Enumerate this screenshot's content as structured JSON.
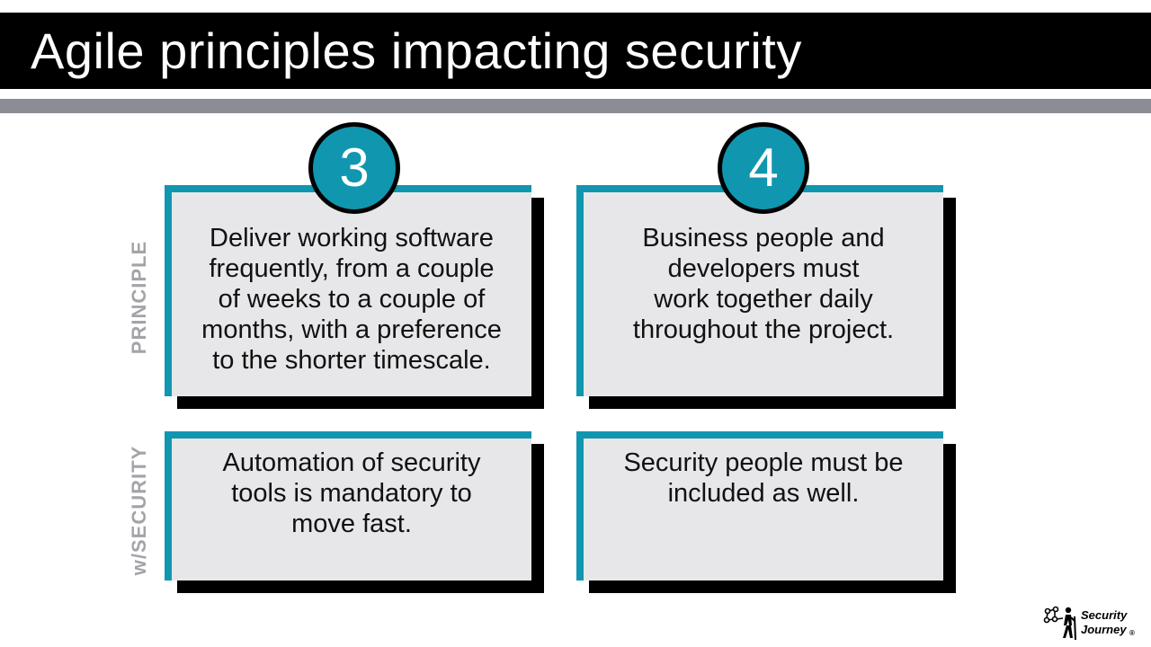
{
  "slide": {
    "title": "Agile principles impacting security"
  },
  "row_labels": {
    "principle": "PRINCIPLE",
    "security": "w/SECURITY"
  },
  "principles": [
    {
      "number": "3",
      "principle": "Deliver working software\nfrequently, from a couple\nof weeks to a couple of\nmonths, with a preference\nto the shorter timescale.",
      "with_security": "Automation of security\ntools is mandatory to\nmove fast."
    },
    {
      "number": "4",
      "principle": "Business people and\ndevelopers must\nwork together daily\nthroughout the project.",
      "with_security": "Security people must be\nincluded as well."
    }
  ],
  "logo": {
    "text": "Security\nJourney",
    "registered_mark": "®"
  },
  "colors": {
    "accent": "#1196b0",
    "title_bar": "#000000",
    "strip": "#8a8d93",
    "card_fill": "#e7e7e9",
    "label_gray": "#a2a4a8"
  }
}
